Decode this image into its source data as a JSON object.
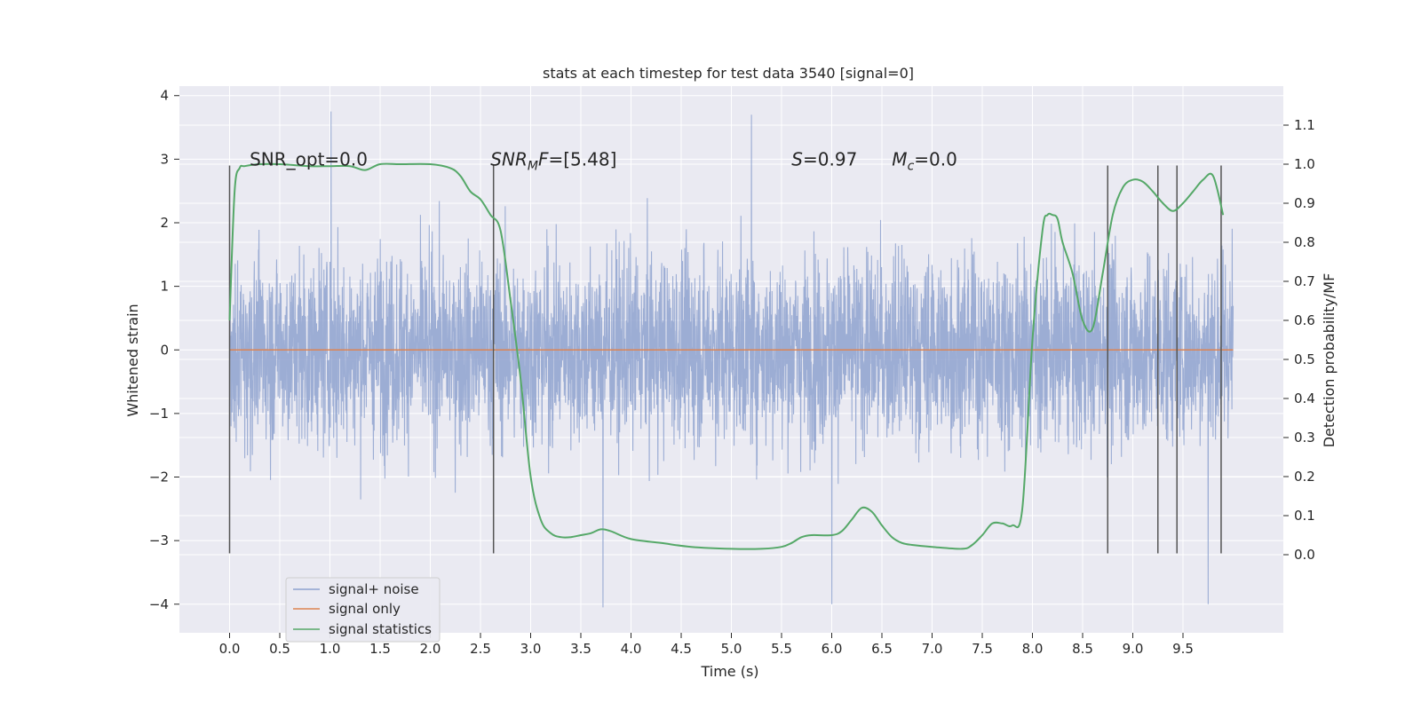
{
  "chart_data": {
    "type": "line",
    "title": "stats at each timestep for test data 3540 [signal=0]",
    "xlabel": "Time (s)",
    "ylabel": "Whitened strain",
    "ylabel_right": "Detection probability/MF",
    "xlim": [
      -0.5,
      10.5
    ],
    "ylim": [
      -4.45,
      4.15
    ],
    "ylim_right": [
      -0.2,
      1.2
    ],
    "x_ticks": [
      "0.0",
      "0.5",
      "1.0",
      "1.5",
      "2.0",
      "2.5",
      "3.0",
      "3.5",
      "4.0",
      "4.5",
      "5.0",
      "5.5",
      "6.0",
      "6.5",
      "7.0",
      "7.5",
      "8.0",
      "8.5",
      "9.0",
      "9.5"
    ],
    "y_ticks": [
      "−4",
      "−3",
      "−2",
      "−1",
      "0",
      "1",
      "2",
      "3",
      "4"
    ],
    "y_ticks_right": [
      "0.0",
      "0.1",
      "0.2",
      "0.3",
      "0.4",
      "0.5",
      "0.6",
      "0.7",
      "0.8",
      "0.9",
      "1.0",
      "1.1"
    ],
    "grid": true,
    "colors": {
      "noise": "#8ea2cf",
      "signal_only": "#dd8452",
      "statistics": "#55a868",
      "marker_lines": "#555555",
      "background": "#eaeaf2",
      "grid": "#ffffff"
    },
    "series": [
      {
        "name": "signal+ noise",
        "axis": "left",
        "x_range": [
          0.0,
          10.0
        ],
        "amplitude_band": [
          -1.4,
          1.4
        ],
        "peak_range": [
          -4.05,
          3.75
        ],
        "note_peaks": [
          [
            1.01,
            3.75
          ],
          [
            3.72,
            -4.05
          ],
          [
            5.2,
            3.7
          ],
          [
            6.0,
            -4.0
          ],
          [
            9.75,
            -4.0
          ]
        ]
      },
      {
        "name": "signal only",
        "axis": "left",
        "x": [
          0.0,
          10.0
        ],
        "y": [
          0.0,
          0.0
        ]
      },
      {
        "name": "signal statistics",
        "axis": "right",
        "x": [
          0.0,
          0.05,
          0.1,
          0.15,
          0.3,
          0.5,
          0.8,
          1.0,
          1.2,
          1.35,
          1.5,
          1.7,
          2.0,
          2.2,
          2.3,
          2.4,
          2.5,
          2.6,
          2.7,
          2.8,
          2.9,
          3.0,
          3.1,
          3.2,
          3.3,
          3.4,
          3.5,
          3.6,
          3.7,
          3.8,
          4.0,
          4.3,
          4.6,
          5.0,
          5.3,
          5.5,
          5.6,
          5.7,
          5.8,
          6.0,
          6.1,
          6.2,
          6.3,
          6.4,
          6.5,
          6.6,
          6.7,
          6.8,
          7.0,
          7.3,
          7.4,
          7.5,
          7.6,
          7.7,
          7.8,
          7.9,
          8.0,
          8.1,
          8.15,
          8.2,
          8.25,
          8.3,
          8.4,
          8.5,
          8.6,
          8.7,
          8.8,
          8.9,
          9.0,
          9.1,
          9.2,
          9.3,
          9.4,
          9.5,
          9.6,
          9.7,
          9.8,
          9.9
        ],
        "y": [
          0.6,
          0.93,
          0.99,
          0.995,
          1.0,
          1.0,
          0.995,
          0.995,
          0.995,
          0.985,
          1.0,
          1.0,
          1.0,
          0.99,
          0.97,
          0.93,
          0.91,
          0.87,
          0.83,
          0.65,
          0.45,
          0.2,
          0.09,
          0.055,
          0.045,
          0.045,
          0.05,
          0.055,
          0.065,
          0.06,
          0.04,
          0.03,
          0.02,
          0.015,
          0.015,
          0.02,
          0.03,
          0.045,
          0.05,
          0.05,
          0.06,
          0.09,
          0.12,
          0.11,
          0.075,
          0.045,
          0.03,
          0.025,
          0.02,
          0.015,
          0.025,
          0.05,
          0.08,
          0.08,
          0.075,
          0.12,
          0.55,
          0.83,
          0.87,
          0.87,
          0.86,
          0.8,
          0.72,
          0.6,
          0.58,
          0.72,
          0.87,
          0.94,
          0.96,
          0.955,
          0.93,
          0.9,
          0.88,
          0.9,
          0.93,
          0.96,
          0.97,
          0.87
        ]
      }
    ],
    "vertical_markers_x": [
      0.0,
      2.63,
      8.75,
      9.25,
      9.44,
      9.88
    ],
    "vertical_markers_yrange": [
      -3.2,
      2.9
    ],
    "annotations": [
      {
        "text": "SNR_opt=0.0",
        "x": 0.2,
        "y": 3.0
      },
      {
        "text": "[5.48]",
        "x": 2.6,
        "y": 3.0,
        "prefix": "SNR",
        "sub": "M",
        "suffix": "F="
      },
      {
        "text": "=0.97",
        "x": 5.6,
        "y": 3.0,
        "prefix": "S"
      },
      {
        "text": "=0.0",
        "x": 6.6,
        "y": 3.0,
        "prefix": "M",
        "sub": "c"
      }
    ],
    "legend": {
      "placement": "lower-left",
      "entries": [
        "signal+ noise",
        "signal only",
        "signal statistics"
      ]
    }
  }
}
